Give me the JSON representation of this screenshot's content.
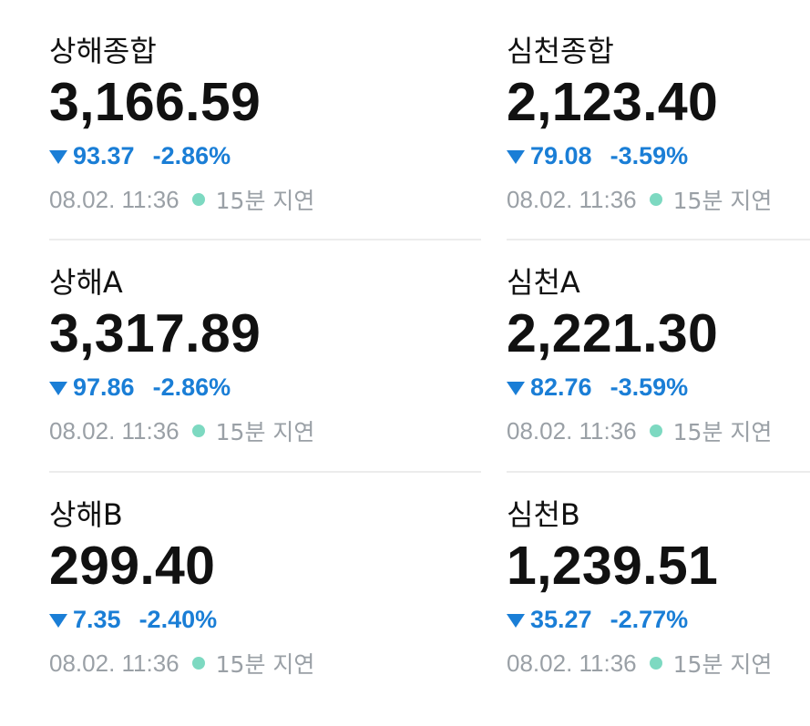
{
  "indices": [
    {
      "name": "상해종합",
      "price": "3,166.59",
      "change": "93.37",
      "change_pct": "-2.86%",
      "time": "08.02. 11:36",
      "delay": "15분 지연"
    },
    {
      "name": "심천종합",
      "price": "2,123.40",
      "change": "79.08",
      "change_pct": "-3.59%",
      "time": "08.02. 11:36",
      "delay": "15분 지연"
    },
    {
      "name": "상해A",
      "price": "3,317.89",
      "change": "97.86",
      "change_pct": "-2.86%",
      "time": "08.02. 11:36",
      "delay": "15분 지연"
    },
    {
      "name": "심천A",
      "price": "2,221.30",
      "change": "82.76",
      "change_pct": "-3.59%",
      "time": "08.02. 11:36",
      "delay": "15분 지연"
    },
    {
      "name": "상해B",
      "price": "299.40",
      "change": "7.35",
      "change_pct": "-2.40%",
      "time": "08.02. 11:36",
      "delay": "15분 지연"
    },
    {
      "name": "심천B",
      "price": "1,239.51",
      "change": "35.27",
      "change_pct": "-2.77%",
      "time": "08.02. 11:36",
      "delay": "15분 지연"
    }
  ],
  "colors": {
    "down": "#1a7ed6",
    "text": "#111111",
    "meta": "#9aa0a6",
    "live_dot": "#7dd9c1",
    "divider": "#ececec"
  },
  "icons": {
    "down_arrow": "triangle-down-icon",
    "status_dot": "live-dot-icon"
  }
}
